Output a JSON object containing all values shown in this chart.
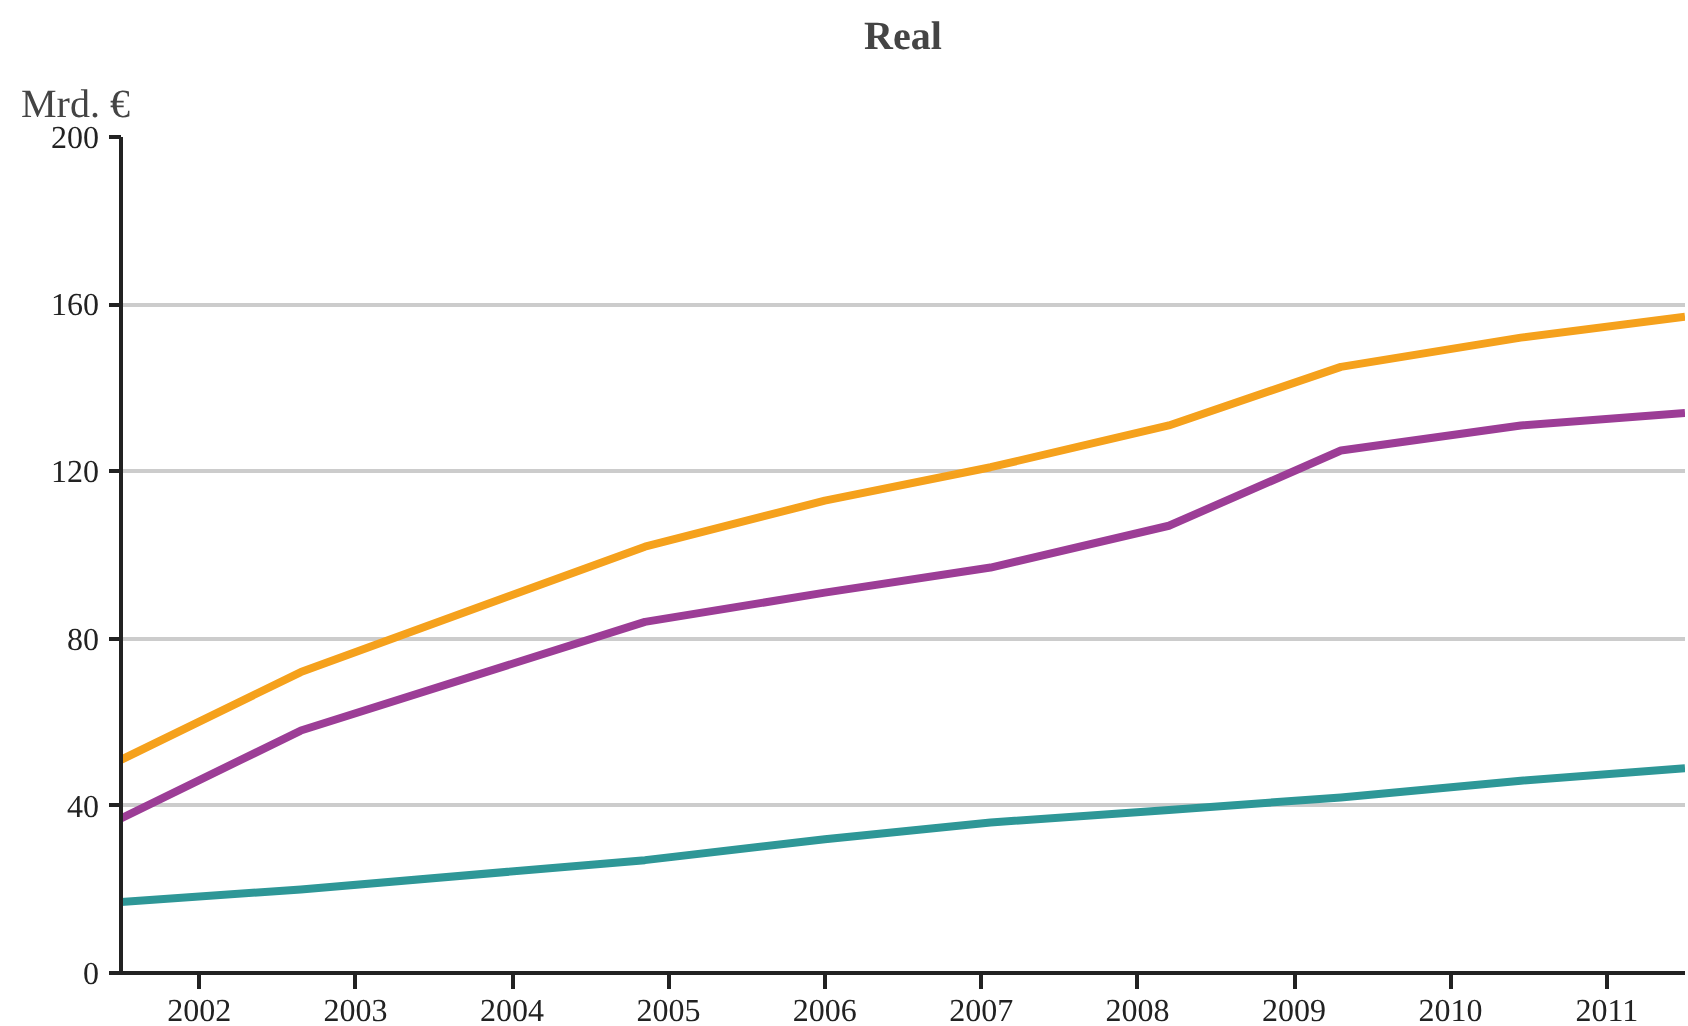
{
  "chart_data": {
    "type": "line",
    "title": "Real",
    "ylabel": "Mrd. €",
    "x": [
      2001.5,
      2002.65,
      2004.85,
      2006,
      2007.06,
      2008.2,
      2009.3,
      2010.45,
      2011.5
    ],
    "series": [
      {
        "color": "#f5a11c",
        "values": [
          51,
          72,
          102,
          113,
          121,
          131,
          145,
          152,
          157
        ]
      },
      {
        "color": "#9c3d96",
        "values": [
          37,
          58,
          84,
          91,
          97,
          107,
          125,
          131,
          134
        ]
      },
      {
        "color": "#2e9797",
        "values": [
          17,
          20,
          27,
          32,
          36,
          39,
          42,
          46,
          49
        ]
      }
    ],
    "xlim": [
      2001.5,
      2011.5
    ],
    "xticks": [
      {
        "value": 2002,
        "label": "2002"
      },
      {
        "value": 2003,
        "label": "2003"
      },
      {
        "value": 2004,
        "label": "2004"
      },
      {
        "value": 2005,
        "label": "2005"
      },
      {
        "value": 2006,
        "label": "2006"
      },
      {
        "value": 2007,
        "label": "2007"
      },
      {
        "value": 2008,
        "label": "2008"
      },
      {
        "value": 2009,
        "label": "2009"
      },
      {
        "value": 2010,
        "label": "2010"
      },
      {
        "value": 2011,
        "label": "2011"
      }
    ],
    "ylim": [
      0,
      200
    ],
    "yticks": [
      0,
      40,
      80,
      120,
      160,
      200
    ],
    "grid": "y",
    "marker": "none",
    "line_style": "solid"
  }
}
